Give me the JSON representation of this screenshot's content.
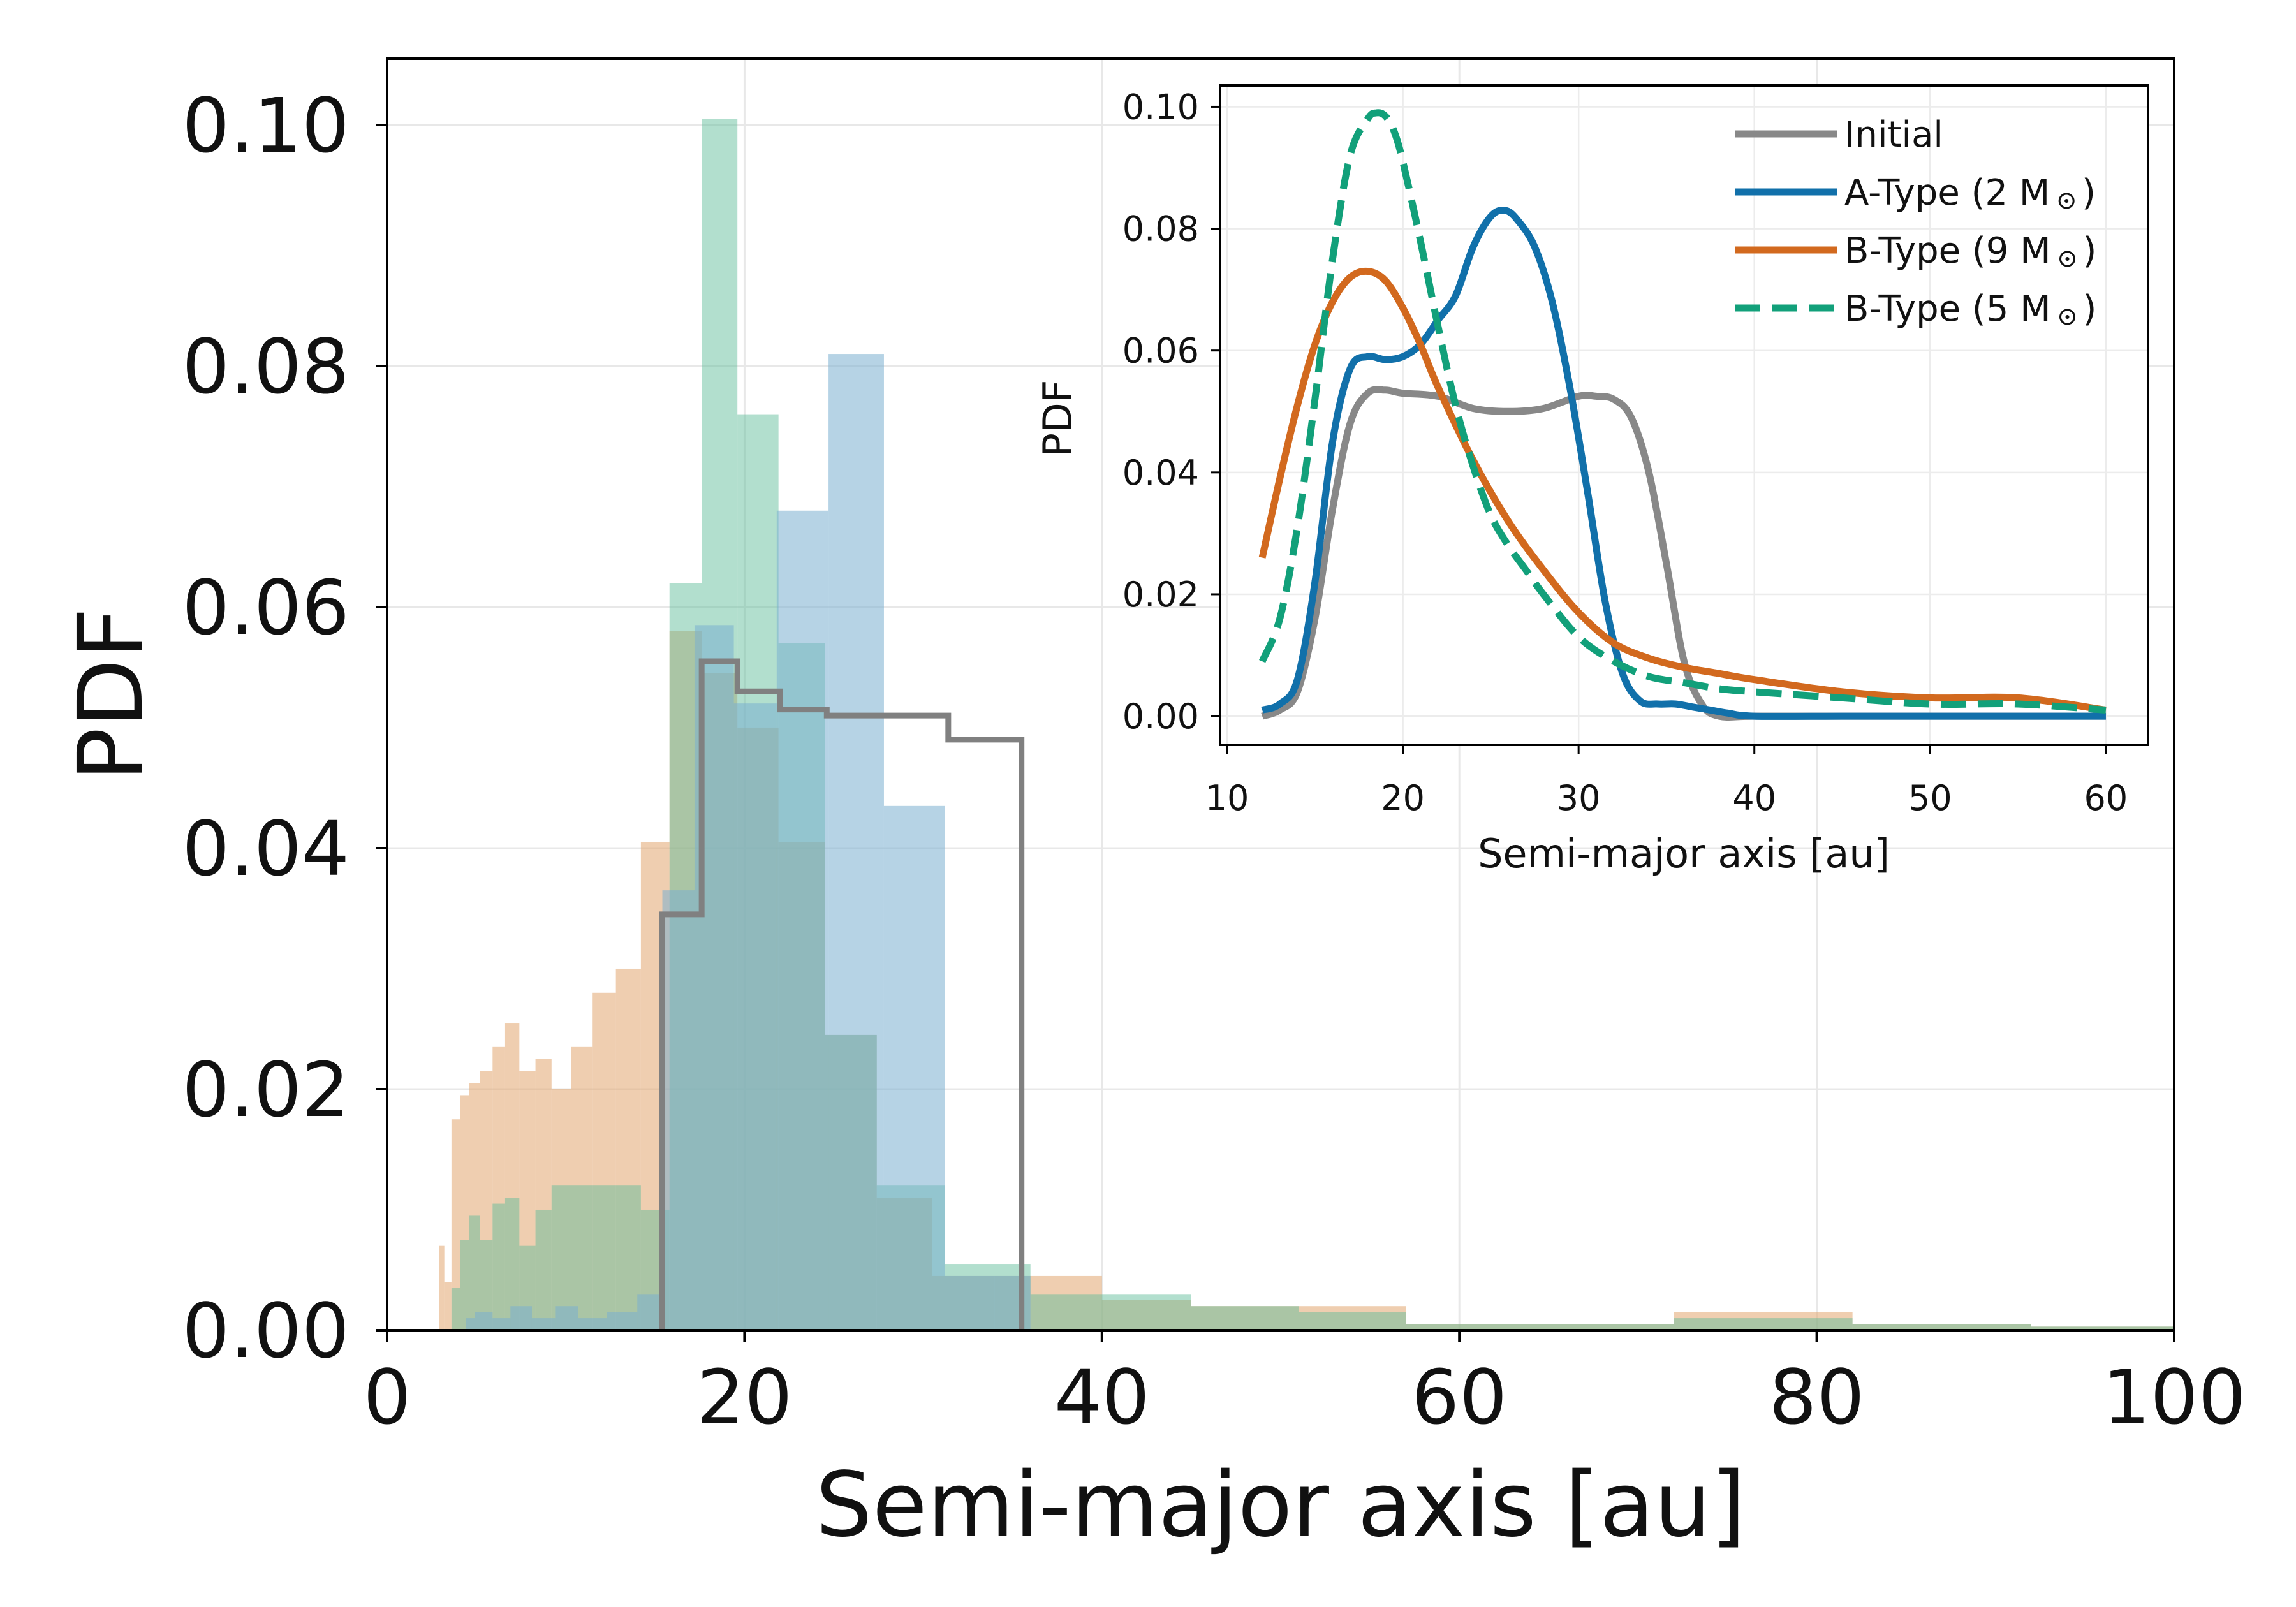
{
  "chart_data": [
    {
      "type": "histogram",
      "title": "",
      "xlabel": "Semi-major axis [au]",
      "ylabel": "PDF",
      "xlim": [
        0,
        100
      ],
      "ylim": [
        0,
        0.1055
      ],
      "xticks": [
        0,
        20,
        40,
        60,
        80,
        100
      ],
      "xtick_labels": [
        "0",
        "20",
        "40",
        "60",
        "80",
        "100"
      ],
      "yticks": [
        0,
        0.02,
        0.04,
        0.06,
        0.08,
        0.1
      ],
      "ytick_labels": [
        "0.00",
        "0.02",
        "0.04",
        "0.06",
        "0.08",
        "0.10"
      ],
      "grid": true,
      "series": [
        {
          "name": "B-Type (9 M☉) histogram",
          "style": "filled",
          "color": "#e1a670",
          "opacity": 0.55,
          "edges": [
            2.9,
            3.2,
            3.6,
            4.1,
            4.6,
            5.2,
            5.9,
            6.6,
            7.4,
            8.3,
            9.2,
            10.3,
            11.5,
            12.8,
            14.2,
            15.8,
            17.6,
            19.6,
            21.9,
            24.5,
            27.4,
            30.5,
            34.0,
            40.0,
            45.0,
            51.0,
            57.0,
            64.0,
            72.0,
            82.0,
            92.0,
            100.0
          ],
          "values": [
            0.007,
            0.004,
            0.0175,
            0.0195,
            0.0205,
            0.0215,
            0.0235,
            0.0255,
            0.0215,
            0.0225,
            0.02,
            0.0235,
            0.028,
            0.03,
            0.0405,
            0.058,
            0.0545,
            0.05,
            0.0405,
            0.0245,
            0.011,
            0.0045,
            0.0045,
            0.0025,
            0.002,
            0.002,
            0.0005,
            0.0005,
            0.0015,
            0.0005,
            0.0003
          ]
        },
        {
          "name": "B-Type (5 M☉) histogram",
          "style": "filled",
          "color": "#5fbd98",
          "opacity": 0.48,
          "edges": [
            3.6,
            4.1,
            4.6,
            5.2,
            5.9,
            6.6,
            7.4,
            8.3,
            9.2,
            10.3,
            11.5,
            12.8,
            14.2,
            15.8,
            17.6,
            19.6,
            21.9,
            24.5,
            27.4,
            31.2,
            36.0,
            45.0,
            51.0,
            57.0,
            64.0,
            72.0,
            82.0,
            92.0,
            100.0
          ],
          "values": [
            0.0035,
            0.0075,
            0.0095,
            0.0075,
            0.0105,
            0.011,
            0.007,
            0.01,
            0.012,
            0.012,
            0.012,
            0.012,
            0.01,
            0.062,
            0.1005,
            0.076,
            0.057,
            0.0245,
            0.012,
            0.0055,
            0.003,
            0.002,
            0.0015,
            0.0005,
            0.0005,
            0.001,
            0.0005,
            0.0003
          ]
        },
        {
          "name": "A-Type (2 M☉) histogram",
          "style": "filled",
          "color": "#7aafd0",
          "opacity": 0.55,
          "edges": [
            4.4,
            4.9,
            5.9,
            6.9,
            8.1,
            9.4,
            10.7,
            12.3,
            14.0,
            15.4,
            17.2,
            19.4,
            21.8,
            24.7,
            27.8,
            31.2,
            36.0
          ],
          "values": [
            0.001,
            0.0015,
            0.001,
            0.002,
            0.001,
            0.002,
            0.001,
            0.0015,
            0.003,
            0.0365,
            0.0585,
            0.052,
            0.068,
            0.081,
            0.0435,
            0.0045
          ]
        },
        {
          "name": "Initial histogram",
          "style": "step",
          "color": "#808080",
          "edges": [
            15.4,
            17.6,
            19.6,
            22.0,
            24.6,
            31.4,
            35.5
          ],
          "values": [
            0.0345,
            0.0555,
            0.053,
            0.0515,
            0.051,
            0.049
          ]
        }
      ]
    },
    {
      "type": "line",
      "title": "",
      "xlabel": "Semi-major axis [au]",
      "ylabel": "PDF",
      "xlim": [
        9.6,
        62.4
      ],
      "ylim": [
        -0.0047,
        0.1035
      ],
      "xticks": [
        10,
        20,
        30,
        40,
        50,
        60
      ],
      "xtick_labels": [
        "10",
        "20",
        "30",
        "40",
        "50",
        "60"
      ],
      "yticks": [
        0,
        0.02,
        0.04,
        0.06,
        0.08,
        0.1
      ],
      "ytick_labels": [
        "0.00",
        "0.02",
        "0.04",
        "0.06",
        "0.08",
        "0.10"
      ],
      "grid": true,
      "legend_position": "upper right",
      "series": [
        {
          "name": "Initial",
          "legend_text": "Initial",
          "color": "#888888",
          "dash": "solid",
          "x": [
            12,
            13,
            14,
            15,
            16,
            17,
            18,
            19,
            20,
            22,
            24,
            26,
            28,
            30,
            31,
            32,
            33,
            34,
            35,
            36,
            37,
            38,
            40,
            45,
            50,
            55,
            60
          ],
          "y": [
            0.0,
            0.001,
            0.004,
            0.016,
            0.034,
            0.048,
            0.053,
            0.0535,
            0.053,
            0.0525,
            0.0505,
            0.05,
            0.0505,
            0.0525,
            0.0525,
            0.052,
            0.049,
            0.04,
            0.025,
            0.009,
            0.002,
            0.0,
            0.0,
            0.0,
            0.0,
            0.0,
            0.0
          ]
        },
        {
          "name": "A-Type (2 Msun)",
          "legend_text": "A-Type (2 M",
          "legend_suffix": ")",
          "color": "#1170aa",
          "dash": "solid",
          "x": [
            12,
            13,
            14,
            15,
            16,
            17,
            18,
            19,
            20,
            21,
            22,
            23,
            24,
            25,
            25.8,
            26.5,
            27.5,
            28.5,
            29.5,
            30.5,
            31.5,
            32.5,
            33.5,
            34.5,
            35.5,
            36.5,
            37.5,
            38.5,
            40,
            45,
            50,
            55,
            60
          ],
          "y": [
            0.001,
            0.002,
            0.006,
            0.022,
            0.045,
            0.057,
            0.059,
            0.0585,
            0.059,
            0.061,
            0.065,
            0.069,
            0.077,
            0.082,
            0.083,
            0.0815,
            0.077,
            0.068,
            0.054,
            0.037,
            0.019,
            0.007,
            0.0025,
            0.002,
            0.002,
            0.0015,
            0.001,
            0.0005,
            0.0,
            0.0,
            0.0,
            0.0,
            0.0
          ]
        },
        {
          "name": "B-Type (9 Msun)",
          "legend_text": "B-Type (9 M",
          "legend_suffix": ")",
          "color": "#d2691e",
          "dash": "solid",
          "x": [
            12,
            13,
            14,
            15,
            16,
            17,
            18,
            19,
            20,
            21,
            22,
            24,
            26,
            28,
            30,
            32,
            34,
            36,
            38,
            40,
            45,
            50,
            55,
            60
          ],
          "y": [
            0.026,
            0.039,
            0.051,
            0.061,
            0.068,
            0.072,
            0.073,
            0.0715,
            0.067,
            0.061,
            0.054,
            0.042,
            0.032,
            0.024,
            0.017,
            0.012,
            0.0095,
            0.008,
            0.007,
            0.006,
            0.004,
            0.003,
            0.003,
            0.001
          ]
        },
        {
          "name": "B-Type (5 Msun)",
          "legend_text": "B-Type (5 M",
          "legend_suffix": ")",
          "color": "#12a07a",
          "dash": "dashed",
          "x": [
            12,
            13,
            14,
            15,
            16,
            17,
            18,
            18.5,
            19,
            19.5,
            20,
            21,
            22,
            23,
            24,
            25,
            26,
            27,
            28,
            30,
            32,
            34,
            36,
            38,
            40,
            45,
            50,
            55,
            60
          ],
          "y": [
            0.009,
            0.016,
            0.031,
            0.052,
            0.075,
            0.092,
            0.098,
            0.099,
            0.0985,
            0.096,
            0.091,
            0.078,
            0.064,
            0.051,
            0.041,
            0.033,
            0.028,
            0.024,
            0.02,
            0.013,
            0.009,
            0.0065,
            0.0055,
            0.0045,
            0.004,
            0.003,
            0.002,
            0.002,
            0.001
          ]
        }
      ]
    }
  ]
}
